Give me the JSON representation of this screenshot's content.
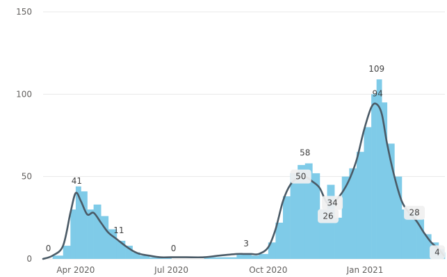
{
  "chart_data": {
    "type": "bar",
    "ylim": [
      0,
      150
    ],
    "yticks": [
      0,
      50,
      100,
      150
    ],
    "x_range": [
      "2020-03-01",
      "2021-03-18"
    ],
    "xticks": [
      {
        "date": "2020-04-01",
        "label": "Apr 2020"
      },
      {
        "date": "2020-07-01",
        "label": "Jul 2020"
      },
      {
        "date": "2020-10-01",
        "label": "Oct 2020"
      },
      {
        "date": "2021-01-01",
        "label": "Jan 2021"
      }
    ],
    "grid": true,
    "colors": {
      "bars": "#7fcbe8",
      "line": "#4a5a66",
      "box": "#f0f0f0"
    },
    "series": [
      {
        "type": "bar",
        "x": [
          "2020-03-01",
          "2020-03-10",
          "2020-03-20",
          "2020-03-27",
          "2020-04-01",
          "2020-04-06",
          "2020-04-12",
          "2020-04-18",
          "2020-04-25",
          "2020-05-02",
          "2020-05-10",
          "2020-05-18",
          "2020-05-25",
          "2020-06-01",
          "2020-06-10",
          "2020-06-20",
          "2020-07-01",
          "2020-07-15",
          "2020-08-01",
          "2020-08-15",
          "2020-09-01",
          "2020-09-08",
          "2020-09-15",
          "2020-09-22",
          "2020-10-01",
          "2020-10-08",
          "2020-10-15",
          "2020-10-22",
          "2020-10-29",
          "2020-11-05",
          "2020-11-12",
          "2020-11-19",
          "2020-11-26",
          "2020-12-03",
          "2020-12-10",
          "2020-12-17",
          "2020-12-24",
          "2020-12-31",
          "2021-01-07",
          "2021-01-12",
          "2021-01-17",
          "2021-01-22",
          "2021-01-29",
          "2021-02-05",
          "2021-02-12",
          "2021-02-19",
          "2021-02-26",
          "2021-03-05",
          "2021-03-12",
          "2021-03-17"
        ],
        "values": [
          0,
          2,
          8,
          30,
          44,
          41,
          30,
          33,
          26,
          18,
          11,
          8,
          4,
          2,
          1,
          1,
          0,
          0,
          1,
          1,
          3,
          3,
          2,
          3,
          10,
          22,
          38,
          52,
          57,
          58,
          52,
          30,
          45,
          25,
          50,
          55,
          65,
          80,
          100,
          109,
          95,
          70,
          50,
          30,
          28,
          24,
          15,
          10,
          6,
          4
        ]
      },
      {
        "type": "line",
        "name": "",
        "x": [
          "2020-03-01",
          "2020-03-10",
          "2020-03-20",
          "2020-03-27",
          "2020-04-01",
          "2020-04-06",
          "2020-04-12",
          "2020-04-18",
          "2020-04-25",
          "2020-05-02",
          "2020-05-10",
          "2020-05-18",
          "2020-05-25",
          "2020-06-01",
          "2020-06-10",
          "2020-06-20",
          "2020-07-01",
          "2020-07-15",
          "2020-08-01",
          "2020-08-15",
          "2020-09-01",
          "2020-09-08",
          "2020-09-15",
          "2020-09-22",
          "2020-10-01",
          "2020-10-08",
          "2020-10-15",
          "2020-10-22",
          "2020-10-29",
          "2020-11-05",
          "2020-11-12",
          "2020-11-19",
          "2020-11-26",
          "2020-12-03",
          "2020-12-10",
          "2020-12-17",
          "2020-12-24",
          "2020-12-31",
          "2021-01-07",
          "2021-01-12",
          "2021-01-17",
          "2021-01-22",
          "2021-01-29",
          "2021-02-05",
          "2021-02-12",
          "2021-02-19",
          "2021-02-26",
          "2021-03-05",
          "2021-03-12",
          "2021-03-17"
        ],
        "values": [
          0,
          2,
          8,
          28,
          40,
          35,
          27,
          28,
          22,
          16,
          12,
          8,
          5,
          3,
          2,
          1,
          1,
          1,
          1,
          2,
          3,
          3,
          3,
          3,
          7,
          18,
          35,
          45,
          49,
          50,
          47,
          43,
          34,
          35,
          40,
          48,
          60,
          78,
          92,
          94,
          88,
          70,
          50,
          35,
          28,
          23,
          16,
          10,
          6,
          2
        ]
      }
    ],
    "annotations": [
      {
        "date": "2020-03-06",
        "value": 0,
        "text": "0",
        "style": "plain"
      },
      {
        "date": "2020-04-02",
        "value": 41,
        "text": "41",
        "style": "plain"
      },
      {
        "date": "2020-05-12",
        "value": 11,
        "text": "11",
        "style": "plain"
      },
      {
        "date": "2020-07-03",
        "value": 0,
        "text": "0",
        "style": "plain"
      },
      {
        "date": "2020-09-10",
        "value": 3,
        "text": "3",
        "style": "plain"
      },
      {
        "date": "2020-11-05",
        "value": 58,
        "text": "58",
        "style": "plain"
      },
      {
        "date": "2021-01-12",
        "value": 109,
        "text": "109",
        "style": "plain"
      },
      {
        "date": "2021-01-13",
        "value": 94,
        "text": "94",
        "style": "plain"
      },
      {
        "date": "2020-11-01",
        "value": 50,
        "text": "50",
        "style": "box"
      },
      {
        "date": "2020-11-27",
        "value": 26,
        "text": "26",
        "style": "box"
      },
      {
        "date": "2020-12-01",
        "value": 34,
        "text": "34",
        "style": "box"
      },
      {
        "date": "2021-02-17",
        "value": 28,
        "text": "28",
        "style": "box"
      },
      {
        "date": "2021-03-18",
        "value": 4,
        "text": "4",
        "style": "box"
      }
    ]
  }
}
